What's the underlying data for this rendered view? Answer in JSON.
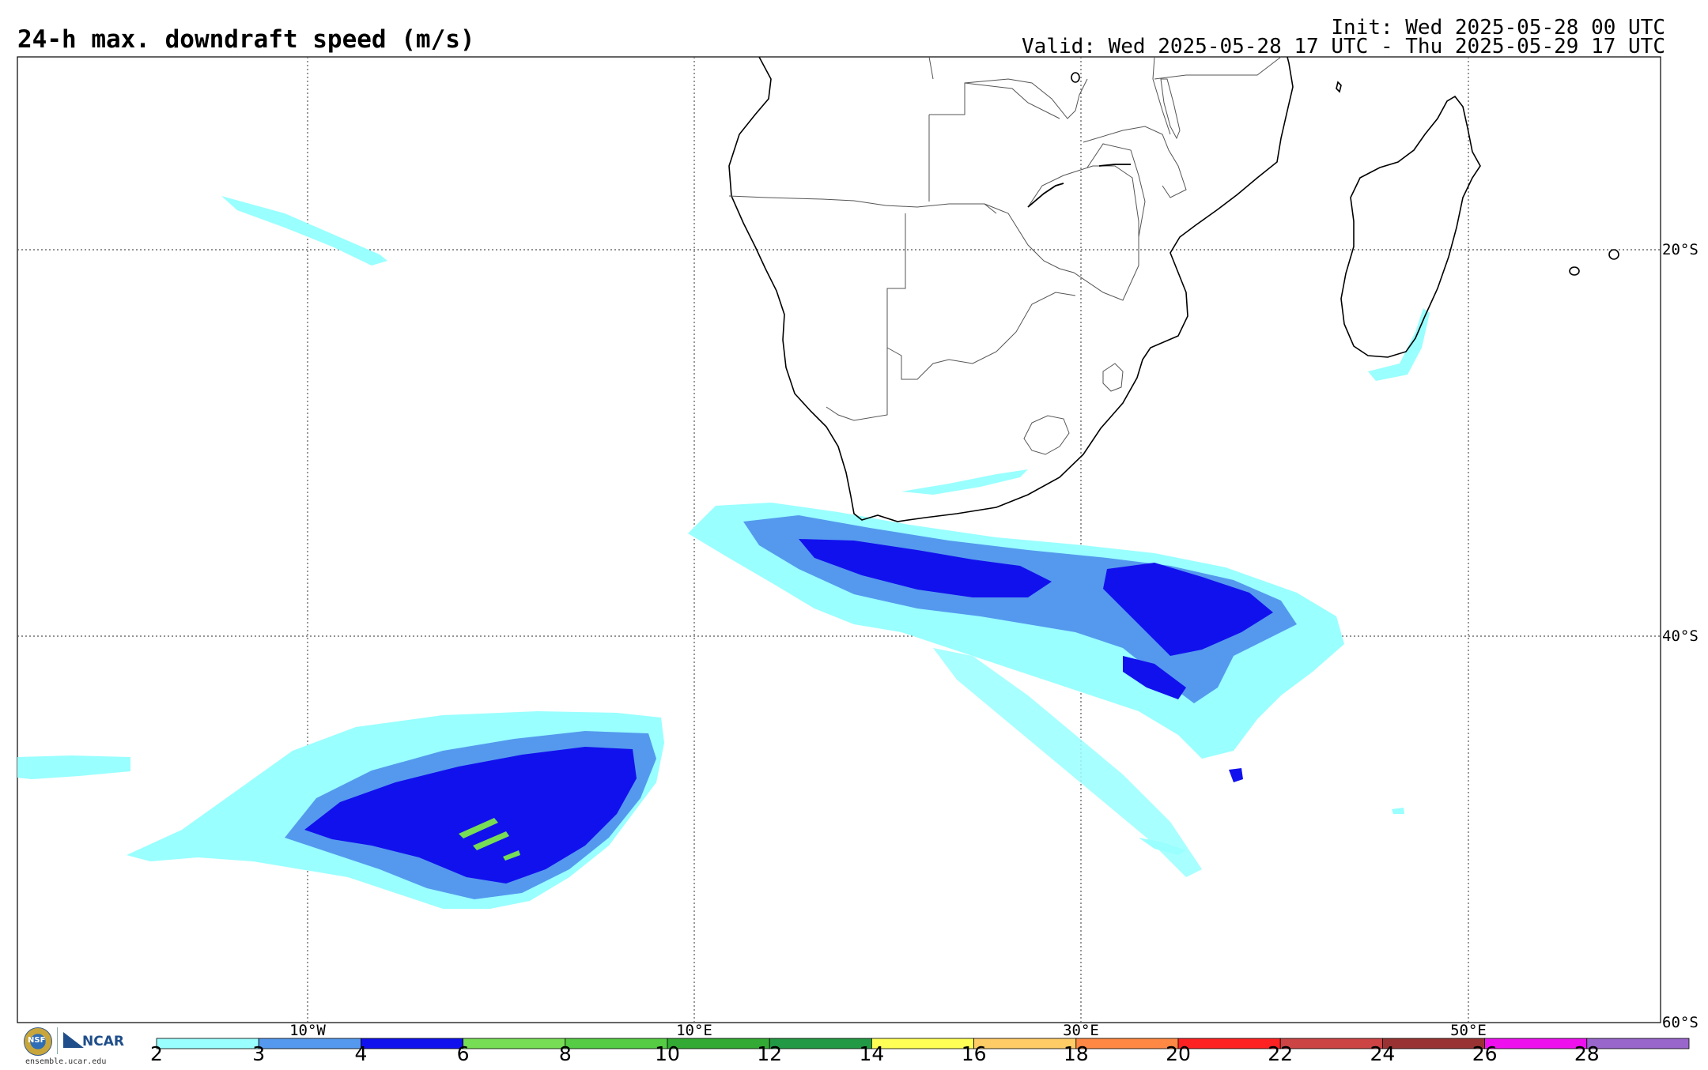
{
  "header": {
    "title": "24-h max. downdraft speed (m/s)",
    "init": "Init: Wed 2025-05-28 00 UTC",
    "valid": "Valid: Wed 2025-05-28 17 UTC - Thu 2025-05-29 17 UTC"
  },
  "map": {
    "lat_labels": [
      "20°S",
      "40°S",
      "60°S"
    ],
    "lon_labels": [
      "10°W",
      "10°E",
      "30°E",
      "50°E"
    ],
    "grid": "dotted"
  },
  "colorbar": {
    "ticks": [
      "2",
      "3",
      "4",
      "6",
      "8",
      "10",
      "12",
      "14",
      "16",
      "18",
      "20",
      "22",
      "24",
      "26",
      "28"
    ],
    "colors": [
      "#99ffff",
      "#5599ee",
      "#1111ee",
      "#77dd55",
      "#55cc44",
      "#33aa33",
      "#229944",
      "#ffff55",
      "#ffcc66",
      "#ff8844",
      "#ff2222",
      "#cc4444",
      "#993333",
      "#ee11ee",
      "#9966cc"
    ]
  },
  "footer": {
    "nsf_logo": "NSF",
    "ncar_logo": "NCAR",
    "site": "ensemble.ucar.edu"
  }
}
